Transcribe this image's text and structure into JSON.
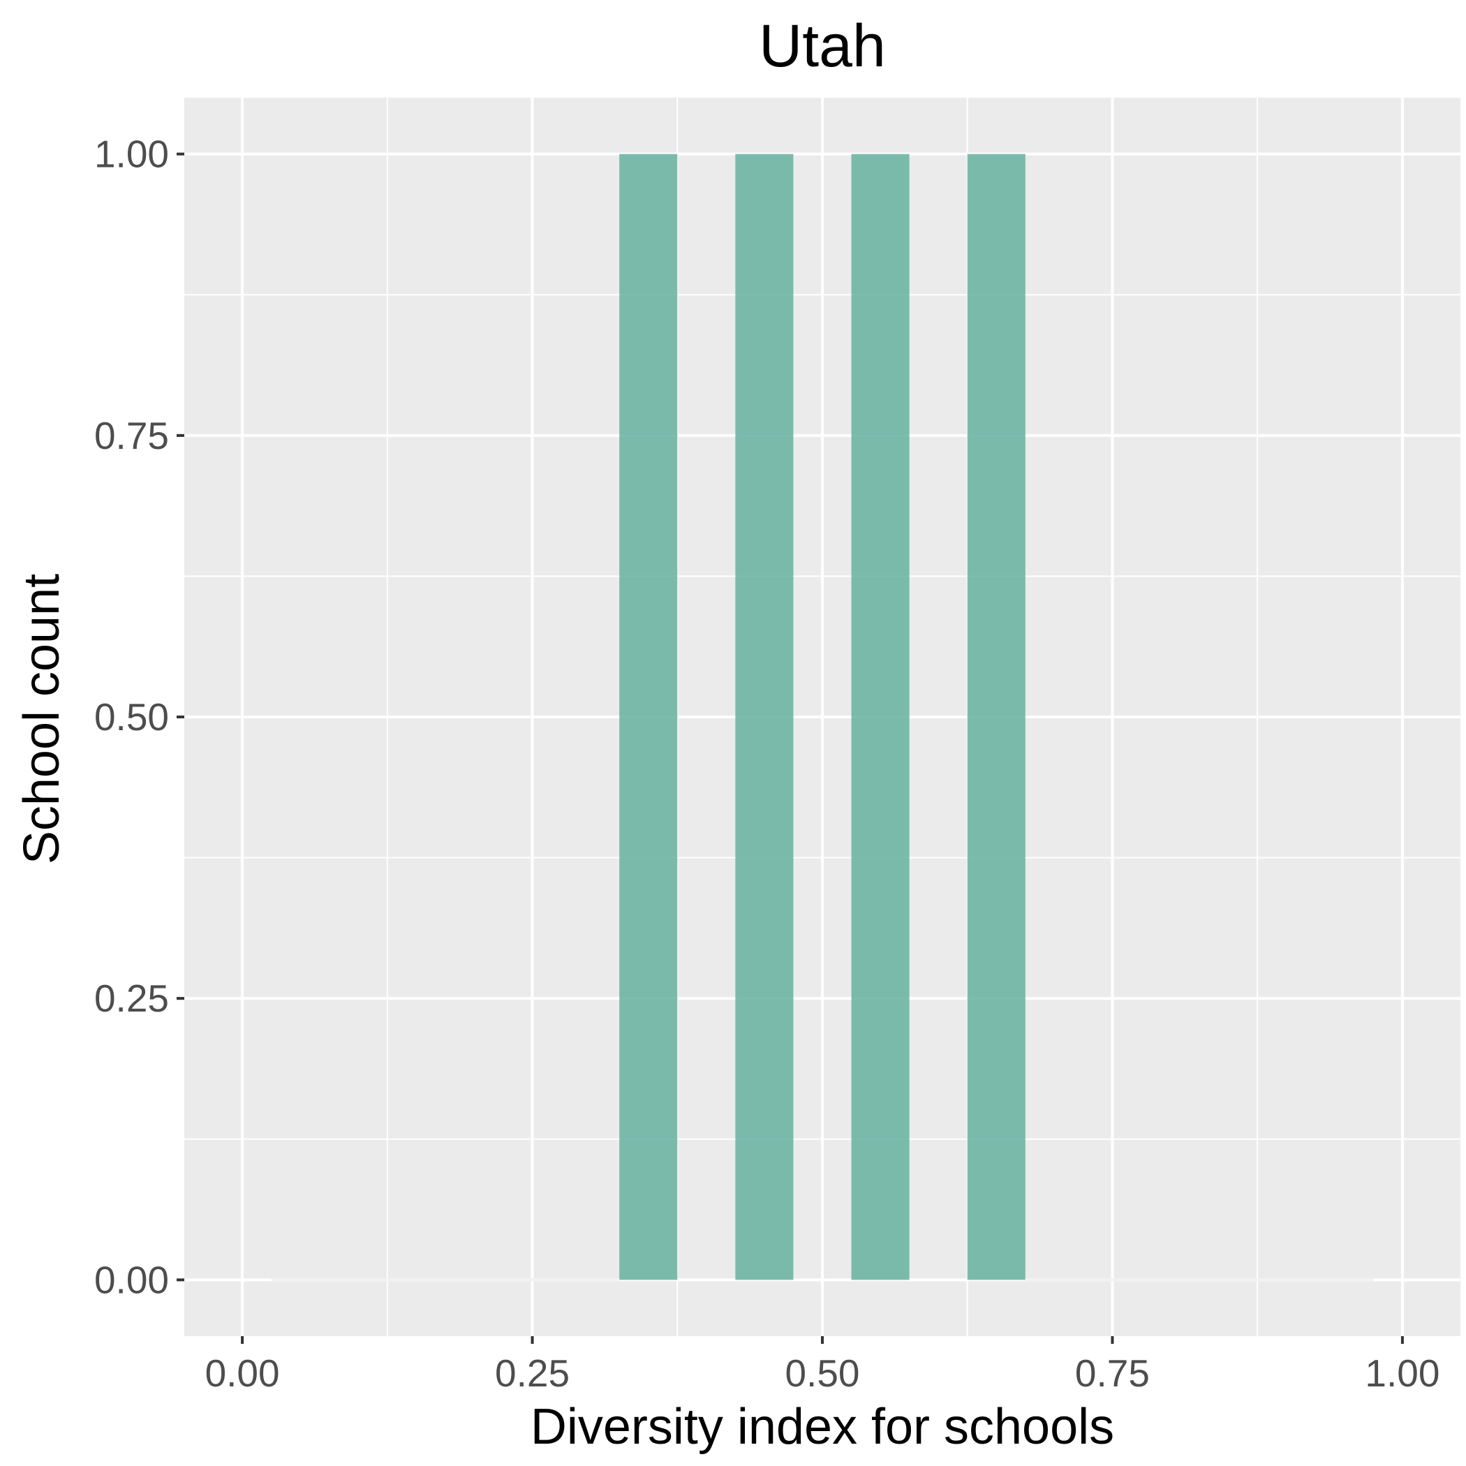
{
  "chart_data": {
    "type": "bar",
    "title": "Utah",
    "xlabel": "Diversity index for schools",
    "ylabel": "School count",
    "xlim": [
      -0.05,
      1.05
    ],
    "ylim": [
      -0.05,
      1.05
    ],
    "x_ticks": [
      0,
      0.25,
      0.5,
      0.75,
      1
    ],
    "x_tick_labels": [
      "0.00",
      "0.25",
      "0.50",
      "0.75",
      "1.00"
    ],
    "y_ticks": [
      0,
      0.25,
      0.5,
      0.75,
      1
    ],
    "y_tick_labels": [
      "0.00",
      "0.25",
      "0.50",
      "0.75",
      "1.00"
    ],
    "bin_width": 0.05,
    "bins": [
      {
        "center": 0.35,
        "count": 1
      },
      {
        "center": 0.45,
        "count": 1
      },
      {
        "center": 0.55,
        "count": 1
      },
      {
        "center": 0.65,
        "count": 1
      }
    ],
    "zero_baseline": [
      [
        0.025,
        0.325
      ],
      [
        0.675,
        0.975
      ]
    ],
    "bar_color": "#66b2a0",
    "panel_color": "#ebebeb",
    "grid_color": "#ffffff",
    "grid": true,
    "legend": "none"
  }
}
